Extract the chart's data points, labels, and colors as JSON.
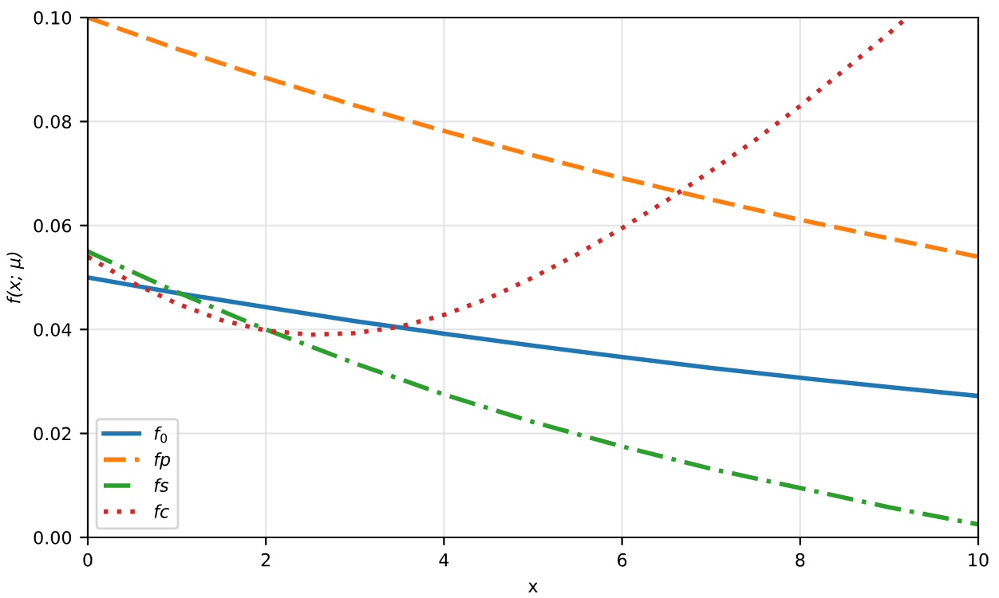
{
  "chart_data": {
    "type": "line",
    "xlabel": "x",
    "ylabel": "f(x; μ)",
    "x": [
      0,
      1,
      2,
      3,
      4,
      5,
      6,
      7,
      8,
      9,
      10
    ],
    "series": [
      {
        "name": "f$_{0}$",
        "color": "#1f77b4",
        "line_style": "solid",
        "values": [
          0.05,
          0.047,
          0.0443,
          0.0416,
          0.0392,
          0.0369,
          0.0347,
          0.0326,
          0.0307,
          0.0289,
          0.0272
        ]
      },
      {
        "name": "fp",
        "color": "#ff7f0e",
        "line_style": "dashed",
        "values": [
          0.1,
          0.094,
          0.0884,
          0.0831,
          0.0782,
          0.0735,
          0.0691,
          0.065,
          0.0611,
          0.0575,
          0.054
        ]
      },
      {
        "name": "fs",
        "color": "#2ca02c",
        "line_style": "dashdot",
        "values": [
          0.055,
          0.0472,
          0.04,
          0.0335,
          0.0275,
          0.0222,
          0.0175,
          0.0132,
          0.0095,
          0.0058,
          0.0025
        ]
      },
      {
        "name": "fc",
        "color": "#d62728",
        "line_style": "dotted",
        "x": [
          0,
          0.5,
          1,
          1.5,
          2,
          2.5,
          3,
          3.5,
          4,
          4.5,
          5,
          5.5,
          6,
          6.5,
          7,
          7.5,
          8,
          8.5,
          9,
          9.2
        ],
        "values": [
          0.054,
          0.049,
          0.045,
          0.0418,
          0.0398,
          0.039,
          0.0393,
          0.0405,
          0.0428,
          0.046,
          0.05,
          0.0545,
          0.0595,
          0.0648,
          0.0705,
          0.0765,
          0.083,
          0.09,
          0.097,
          0.1
        ]
      }
    ],
    "xlim": [
      0,
      10
    ],
    "ylim": [
      0,
      0.1
    ],
    "xticks": [
      0,
      2,
      4,
      6,
      8,
      10
    ],
    "yticks": [
      {
        "value": 0,
        "label": "0.00"
      },
      {
        "value": 0.02,
        "label": "0.02"
      },
      {
        "value": 0.04,
        "label": "0.04"
      },
      {
        "value": 0.06,
        "label": "0.06"
      },
      {
        "value": 0.08,
        "label": "0.08"
      },
      {
        "value": 0.1,
        "label": "0.10"
      }
    ],
    "grid": true,
    "legend": "bottom left"
  }
}
